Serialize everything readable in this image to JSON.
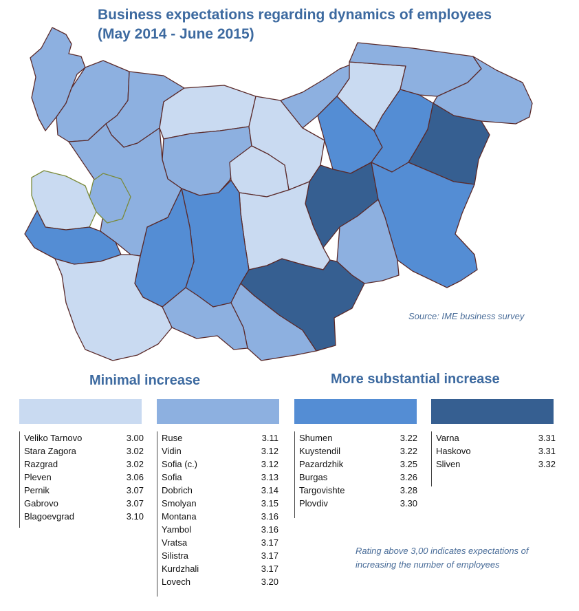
{
  "title": {
    "line1": "Business expectations regarding dynamics of employees",
    "line2": "(May 2014 - June 2015)"
  },
  "source": "Source: IME business survey",
  "legend": {
    "minimal_heading": "Minimal increase",
    "substantial_heading": "More substantial increase",
    "colors": [
      "#c9daf1",
      "#8db0e0",
      "#548dd4",
      "#365f91"
    ]
  },
  "groups": [
    {
      "rows": [
        {
          "name": "Veliko Tarnovo",
          "value": "3.00"
        },
        {
          "name": "Stara Zagora",
          "value": "3.02"
        },
        {
          "name": "Razgrad",
          "value": "3.02"
        },
        {
          "name": "Pleven",
          "value": "3.06"
        },
        {
          "name": "Pernik",
          "value": "3.07"
        },
        {
          "name": "Gabrovo",
          "value": "3.07"
        },
        {
          "name": "Blagoevgrad",
          "value": "3.10"
        }
      ]
    },
    {
      "rows": [
        {
          "name": "Ruse",
          "value": "3.11"
        },
        {
          "name": "Vidin",
          "value": "3.12"
        },
        {
          "name": "Sofia (c.)",
          "value": "3.12"
        },
        {
          "name": "Sofia",
          "value": "3.13"
        },
        {
          "name": "Dobrich",
          "value": "3.14"
        },
        {
          "name": "Smolyan",
          "value": "3.15"
        },
        {
          "name": "Montana",
          "value": "3.16"
        },
        {
          "name": "Yambol",
          "value": "3.16"
        },
        {
          "name": "Vratsa",
          "value": "3.17"
        },
        {
          "name": "Silistra",
          "value": "3.17"
        },
        {
          "name": "Kurdzhali",
          "value": "3.17"
        },
        {
          "name": "Lovech",
          "value": "3.20"
        }
      ]
    },
    {
      "rows": [
        {
          "name": "Shumen",
          "value": "3.22"
        },
        {
          "name": "Kuystendil",
          "value": "3.22"
        },
        {
          "name": "Pazardzhik",
          "value": "3.25"
        },
        {
          "name": "Burgas",
          "value": "3.26"
        },
        {
          "name": "Targovishte",
          "value": "3.28"
        },
        {
          "name": "Plovdiv",
          "value": "3.30"
        }
      ]
    },
    {
      "rows": [
        {
          "name": "Varna",
          "value": "3.31"
        },
        {
          "name": "Haskovo",
          "value": "3.31"
        },
        {
          "name": "Sliven",
          "value": "3.32"
        }
      ]
    }
  ],
  "note": {
    "line1": "Rating above 3,00 indicates expectations of",
    "line2": "increasing the number of employees"
  }
}
